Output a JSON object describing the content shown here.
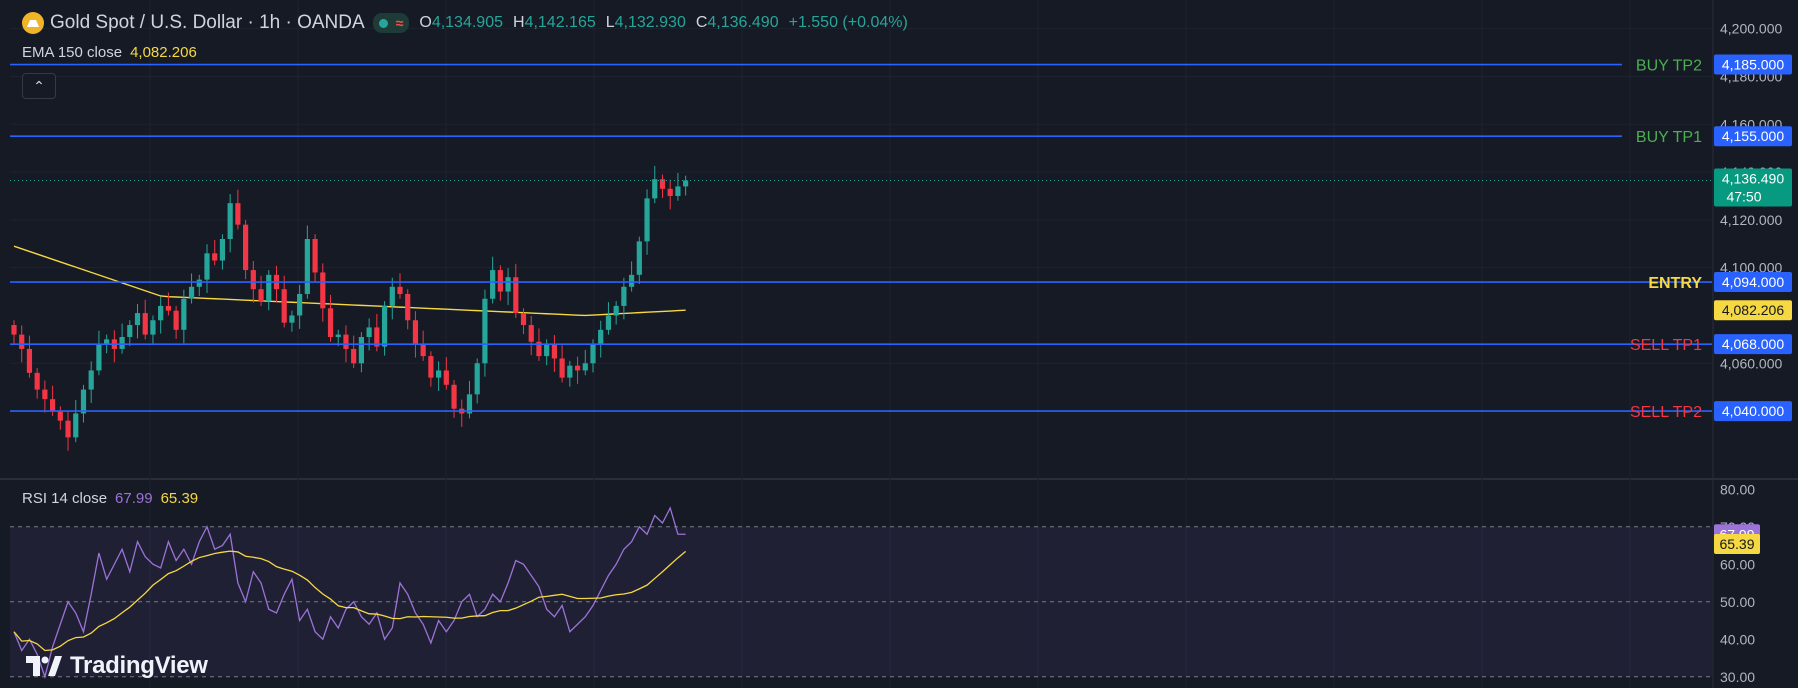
{
  "header": {
    "title": "Gold Spot / U.S. Dollar · 1h · OANDA",
    "status_icon": "market-open-dot-icon",
    "waves_icon": "waves-icon",
    "ohlc": [
      {
        "key": "O",
        "value": "4,134.905"
      },
      {
        "key": "H",
        "value": "4,142.165"
      },
      {
        "key": "L",
        "value": "4,132.930"
      },
      {
        "key": "C",
        "value": "4,136.490"
      },
      {
        "key": "",
        "value": "+1.550 (+0.04%)"
      }
    ]
  },
  "ema": {
    "label": "EMA 150 close",
    "value": "4,082.206"
  },
  "rsi_legend": {
    "label": "RSI 14 close",
    "rsi": "67.99",
    "sma": "65.39"
  },
  "brand": {
    "name": "TradingView",
    "icon": "tradingview-logo-icon"
  },
  "colors": {
    "background": "#161a25",
    "bull": "#26a69a",
    "bear": "#f23645",
    "level_line": "#2962ff",
    "ema": "#f5d842",
    "rsi": "#9c73d6",
    "buy_text": "#4caf50",
    "sell_text": "#f23645",
    "entry_text": "#f5d842"
  },
  "chart_data": [
    {
      "type": "candlestick",
      "y_ticks": [
        "4,060.000",
        "4,100.000",
        "4,120.000",
        "4,140.000",
        "4,160.000",
        "4,180.000",
        "4,200.000"
      ],
      "ylim": [
        4012,
        4212
      ],
      "levels": [
        {
          "label": "BUY TP2",
          "price": 4185,
          "price_label": "4,185.000",
          "kind": "buy"
        },
        {
          "label": "BUY TP1",
          "price": 4155,
          "price_label": "4,155.000",
          "kind": "buy"
        },
        {
          "label": "ENTRY",
          "price": 4094,
          "price_label": "4,094.000",
          "kind": "entry"
        },
        {
          "label": "SELL TP1",
          "price": 4068,
          "price_label": "4,068.000",
          "kind": "sell"
        },
        {
          "label": "SELL TP2",
          "price": 4040,
          "price_label": "4,040.000",
          "kind": "sell"
        }
      ],
      "ema_price": {
        "price": 4082.206,
        "label": "4,082.206"
      },
      "last_price": {
        "price": 4136.49,
        "label": "4,136.490",
        "countdown": "47:50"
      },
      "close_series": [
        4072,
        4066,
        4056,
        4049,
        4045,
        4040,
        4036,
        4029,
        4039,
        4049,
        4057,
        4068,
        4070,
        4066,
        4071,
        4076,
        4081,
        4072,
        4078,
        4084,
        4082,
        4074,
        4087,
        4092,
        4095,
        4106,
        4103,
        4112,
        4127,
        4118,
        4099,
        4091,
        4086,
        4097,
        4091,
        4077,
        4080,
        4089,
        4112,
        4098,
        4083,
        4071,
        4072,
        4066,
        4060,
        4071,
        4075,
        4067,
        4084,
        4092,
        4089,
        4078,
        4068,
        4063,
        4054,
        4057,
        4051,
        4041,
        4039,
        4047,
        4060,
        4087,
        4099,
        4090,
        4096,
        4081,
        4076,
        4069,
        4063,
        4068,
        4062,
        4054,
        4059,
        4057,
        4060,
        4068,
        4074,
        4080,
        4084,
        4092,
        4097,
        4111,
        4129,
        4137,
        4133,
        4130,
        4134,
        4136.49
      ],
      "ema_series": {
        "start": 4109,
        "mid": 4088,
        "low": 4080,
        "end": 4082.206
      }
    },
    {
      "type": "line",
      "name": "RSI 14 close",
      "y_ticks": [
        "30.00",
        "40.00",
        "50.00",
        "60.00",
        "70.00",
        "80.00"
      ],
      "ylim": [
        27,
        83
      ],
      "bands": [
        30,
        50,
        70
      ],
      "rsi_series": [
        42,
        37,
        40,
        36,
        30,
        38,
        44,
        50,
        47,
        42,
        52,
        63,
        56,
        60,
        64,
        58,
        66,
        62,
        60,
        59,
        66,
        61,
        64,
        60,
        66,
        70,
        64,
        65,
        68,
        55,
        50,
        58,
        55,
        48,
        47,
        52,
        56,
        45,
        48,
        42,
        40,
        46,
        43,
        48,
        50,
        46,
        44,
        47,
        40,
        43,
        55,
        52,
        47,
        44,
        39,
        45,
        42,
        45,
        50,
        52,
        46,
        48,
        52,
        50,
        55,
        61,
        60,
        57,
        54,
        48,
        46,
        49,
        42,
        44,
        46,
        49,
        53,
        57,
        60,
        64,
        66,
        70,
        68,
        73,
        71,
        75,
        68,
        67.99
      ],
      "sma_series": {
        "start": 39.5,
        "peak": 61,
        "dip": 45,
        "end": 65.39
      },
      "rsi_label": "67.99",
      "sma_label": "65.39"
    }
  ]
}
